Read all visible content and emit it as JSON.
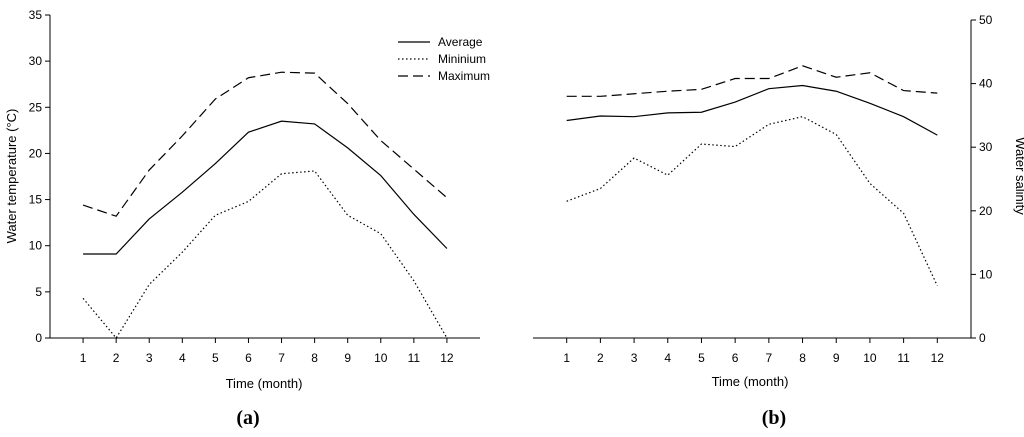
{
  "chart_data": [
    {
      "type": "line",
      "panel": "a",
      "panel_label": "(a)",
      "xlabel": "Time (month)",
      "ylabel": "Water temperature (°C)",
      "x": [
        1,
        2,
        3,
        4,
        5,
        6,
        7,
        8,
        9,
        10,
        11,
        12
      ],
      "x_tick_labels": [
        "1",
        "2",
        "3",
        "4",
        "5",
        "6",
        "7",
        "8",
        "9",
        "10",
        "11",
        "12"
      ],
      "xlim": [
        0,
        13
      ],
      "ylim": [
        0,
        35
      ],
      "y_ticks": [
        "0",
        "5",
        "10",
        "15",
        "20",
        "25",
        "30",
        "35"
      ],
      "y_axis_side": "left",
      "legend_position": "top-right",
      "series": [
        {
          "name": "Average",
          "style": "solid",
          "values": [
            9.1,
            9.1,
            12.9,
            15.8,
            18.9,
            22.3,
            23.5,
            23.2,
            20.6,
            17.6,
            13.4,
            9.7
          ]
        },
        {
          "name": "Mininium",
          "style": "dotted",
          "values": [
            4.3,
            0.0,
            5.8,
            9.3,
            13.3,
            14.8,
            17.8,
            18.1,
            13.3,
            11.3,
            6.2,
            0.0
          ]
        },
        {
          "name": "Maximum",
          "style": "dashed",
          "values": [
            14.4,
            13.2,
            18.2,
            21.9,
            25.9,
            28.2,
            28.8,
            28.7,
            25.4,
            21.4,
            18.3,
            15.2
          ]
        }
      ]
    },
    {
      "type": "line",
      "panel": "b",
      "panel_label": "(b)",
      "xlabel": "Time (month)",
      "ylabel": "Water salinity",
      "x": [
        1,
        2,
        3,
        4,
        5,
        6,
        7,
        8,
        9,
        10,
        11,
        12
      ],
      "x_tick_labels": [
        "1",
        "2",
        "3",
        "4",
        "5",
        "6",
        "7",
        "8",
        "9",
        "10",
        "11",
        "12"
      ],
      "xlim": [
        0,
        13
      ],
      "ylim": [
        0,
        50
      ],
      "y_ticks": [
        "0",
        "10",
        "20",
        "30",
        "40",
        "50"
      ],
      "y_axis_side": "right",
      "series": [
        {
          "name": "Average",
          "style": "solid",
          "values": [
            34.2,
            34.9,
            34.8,
            35.4,
            35.5,
            37.1,
            39.2,
            39.7,
            38.8,
            36.9,
            34.8,
            31.9
          ]
        },
        {
          "name": "Mininium",
          "style": "dotted",
          "values": [
            21.5,
            23.5,
            28.3,
            25.6,
            30.5,
            30.1,
            33.6,
            34.8,
            32.0,
            24.3,
            19.6,
            8.2
          ]
        },
        {
          "name": "Maximum",
          "style": "dashed",
          "values": [
            38.0,
            38.0,
            38.4,
            38.8,
            39.1,
            40.8,
            40.8,
            42.8,
            41.0,
            41.7,
            38.9,
            38.5
          ]
        }
      ]
    }
  ]
}
